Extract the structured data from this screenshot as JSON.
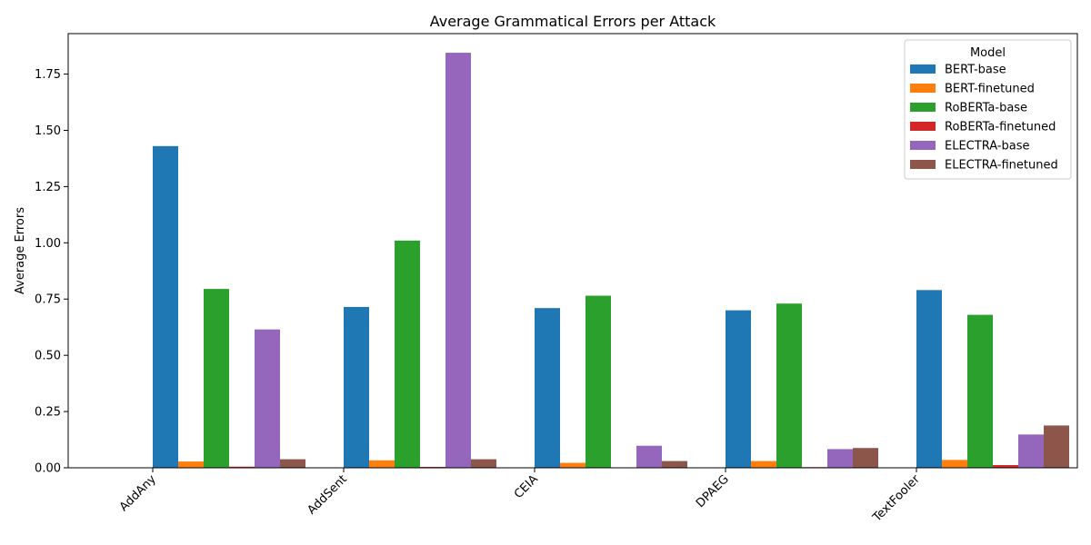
{
  "chart_data": {
    "type": "bar",
    "title": "Average Grammatical Errors per Attack",
    "xlabel": "",
    "ylabel": "Average Errors",
    "ylim": [
      0,
      1.93
    ],
    "yticks": [
      "0.00",
      "0.25",
      "0.50",
      "0.75",
      "1.00",
      "1.25",
      "1.50",
      "1.75"
    ],
    "categories": [
      "AddAny",
      "AddSent",
      "CEIA",
      "DPAEG",
      "TextFooler"
    ],
    "legend_title": "Model",
    "legend_position": "top-right",
    "grid": false,
    "series": [
      {
        "name": "BERT-base",
        "color": "#1f77b4",
        "values": [
          1.43,
          0.715,
          0.71,
          0.7,
          0.79
        ]
      },
      {
        "name": "BERT-finetuned",
        "color": "#ff7f0e",
        "values": [
          0.028,
          0.033,
          0.022,
          0.03,
          0.035
        ]
      },
      {
        "name": "RoBERTa-base",
        "color": "#2ca02c",
        "values": [
          0.795,
          1.01,
          0.765,
          0.73,
          0.68
        ]
      },
      {
        "name": "RoBERTa-finetuned",
        "color": "#d62728",
        "values": [
          0.005,
          0.004,
          0.0,
          0.003,
          0.012
        ]
      },
      {
        "name": "ELECTRA-base",
        "color": "#9467bd",
        "values": [
          0.615,
          1.845,
          0.098,
          0.083,
          0.148
        ]
      },
      {
        "name": "ELECTRA-finetuned",
        "color": "#8c564b",
        "values": [
          0.038,
          0.038,
          0.03,
          0.088,
          0.188
        ]
      }
    ]
  }
}
